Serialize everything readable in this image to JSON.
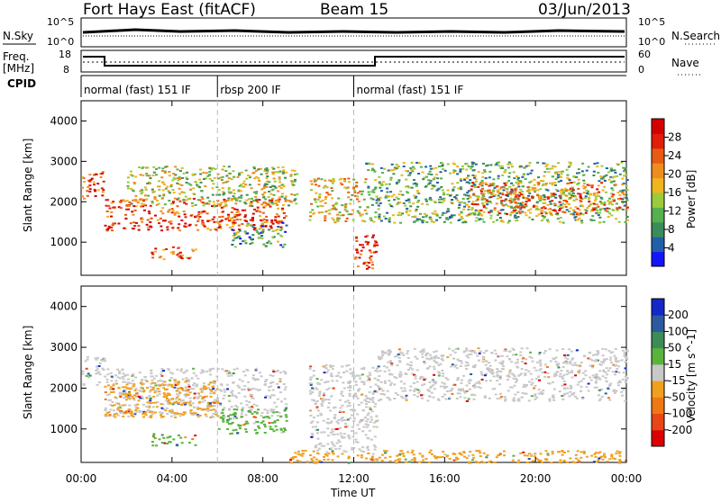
{
  "header": {
    "station": "Fort Hays East (fitACF)",
    "beam": "Beam 15",
    "date": "03/Jun/2013"
  },
  "top_panels": {
    "nsky_label": "N.Sky",
    "nsky_ticks": [
      "10^5",
      "10^0"
    ],
    "nsearch_label": "N.Search",
    "nsearch_ticks": [
      "10^5",
      "10^0"
    ],
    "freq_label": "Freq.",
    "freq_unit": "[MHz]",
    "freq_ticks": [
      "18",
      "8"
    ],
    "nave_label": "Nave",
    "nave_ticks": [
      "60",
      "0"
    ],
    "cpid_label": "CPID",
    "cpid_modes": [
      {
        "label": "normal (fast) 151 IF",
        "start": 0.0,
        "end": 6.0
      },
      {
        "label": "rbsp 200 IF",
        "start": 6.0,
        "end": 12.0
      },
      {
        "label": "normal (fast) 151 IF",
        "start": 12.0,
        "end": 24.0
      }
    ]
  },
  "chart_data": [
    {
      "type": "heatmap",
      "title": "Power",
      "ylabel": "Slant Range [km]",
      "yticks": [
        "1000",
        "2000",
        "3000",
        "4000"
      ],
      "ylim": [
        180,
        4500
      ],
      "xlim": [
        0,
        24
      ],
      "colorbar": {
        "label": "Power [dB]",
        "ticks": [
          "4",
          "8",
          "12",
          "16",
          "20",
          "24",
          "28"
        ],
        "colors": [
          "#1414ff",
          "#2060a8",
          "#3a8c5a",
          "#56b04e",
          "#9acb3c",
          "#f0b41e",
          "#f08c1e",
          "#e85a14",
          "#e01e0a",
          "#d40000"
        ]
      },
      "bands": [
        {
          "t0": 0.0,
          "t1": 1.0,
          "r0": 2100,
          "r1": 2800,
          "level": 0.75
        },
        {
          "t0": 1.0,
          "t1": 9.0,
          "r0": 1300,
          "r1": 2100,
          "level": 0.8
        },
        {
          "t0": 2.0,
          "t1": 9.5,
          "r0": 1900,
          "r1": 2900,
          "level": 0.45
        },
        {
          "t0": 3.0,
          "t1": 5.0,
          "r0": 600,
          "r1": 900,
          "level": 0.7
        },
        {
          "t0": 6.5,
          "t1": 9.0,
          "r0": 900,
          "r1": 1500,
          "level": 0.3
        },
        {
          "t0": 10.0,
          "t1": 12.5,
          "r0": 1500,
          "r1": 2600,
          "level": 0.55
        },
        {
          "t0": 12.0,
          "t1": 13.0,
          "r0": 300,
          "r1": 1200,
          "level": 0.85
        },
        {
          "t0": 12.5,
          "t1": 24.0,
          "r0": 1500,
          "r1": 3000,
          "level": 0.35
        },
        {
          "t0": 17.0,
          "t1": 24.0,
          "r0": 1700,
          "r1": 2500,
          "level": 0.7
        }
      ]
    },
    {
      "type": "heatmap",
      "title": "Velocity",
      "ylabel": "Slant Range [km]",
      "xlabel": "Time UT",
      "xticks": [
        "00:00",
        "04:00",
        "08:00",
        "12:00",
        "16:00",
        "20:00",
        "00:00"
      ],
      "yticks": [
        "1000",
        "2000",
        "3000",
        "4000"
      ],
      "ylim": [
        180,
        4500
      ],
      "xlim": [
        0,
        24
      ],
      "colorbar": {
        "label": "Velocity [m s^-1]",
        "ticks": [
          "200",
          "100",
          "50",
          "15",
          "-15",
          "-50",
          "-100",
          "-200"
        ],
        "colors": [
          "#1428c8",
          "#2c5aa0",
          "#3c8c5a",
          "#5ab43c",
          "#c8c8c8",
          "#f0a01e",
          "#f07814",
          "#e84614",
          "#dc0000"
        ]
      },
      "bands": [
        {
          "t0": 0.0,
          "t1": 1.0,
          "r0": 2100,
          "r1": 2800,
          "color": "#c8c8c8"
        },
        {
          "t0": 1.0,
          "t1": 9.0,
          "r0": 1300,
          "r1": 2500,
          "color": "#c8c8c8"
        },
        {
          "t0": 1.0,
          "t1": 6.0,
          "r0": 1300,
          "r1": 2200,
          "color": "#f0a01e"
        },
        {
          "t0": 3.0,
          "t1": 5.0,
          "r0": 600,
          "r1": 900,
          "color": "#5ab43c"
        },
        {
          "t0": 6.0,
          "t1": 9.0,
          "r0": 900,
          "r1": 1500,
          "color": "#5ab43c"
        },
        {
          "t0": 10.0,
          "t1": 13.0,
          "r0": 400,
          "r1": 2600,
          "color": "#c8c8c8"
        },
        {
          "t0": 13.0,
          "t1": 24.0,
          "r0": 1700,
          "r1": 3000,
          "color": "#c8c8c8"
        },
        {
          "t0": 9.0,
          "t1": 24.0,
          "r0": 180,
          "r1": 500,
          "color": "#f0a01e"
        }
      ]
    }
  ]
}
